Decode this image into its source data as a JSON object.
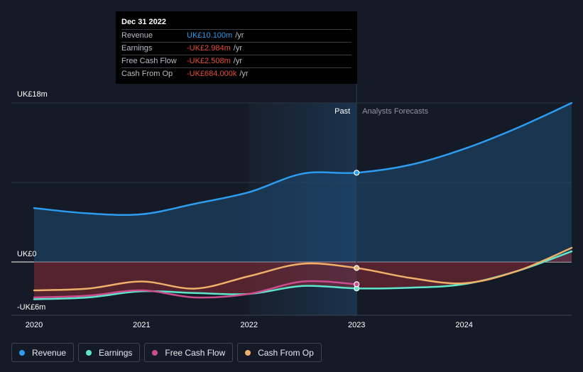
{
  "tooltip": {
    "date": "Dec 31 2022",
    "rows": [
      {
        "label": "Revenue",
        "value": "UK£10.100m",
        "unit": "/yr"
      },
      {
        "label": "Earnings",
        "value": "-UK£2.984m",
        "unit": "/yr"
      },
      {
        "label": "Free Cash Flow",
        "value": "-UK£2.508m",
        "unit": "/yr"
      },
      {
        "label": "Cash From Op",
        "value": "-UK£684.000k",
        "unit": "/yr"
      }
    ]
  },
  "legend": [
    {
      "label": "Revenue",
      "color": "#2d9cf0"
    },
    {
      "label": "Earnings",
      "color": "#5ee6cc"
    },
    {
      "label": "Free Cash Flow",
      "color": "#cc4c8f"
    },
    {
      "label": "Cash From Op",
      "color": "#f0b06a"
    }
  ],
  "chart_data": {
    "type": "line",
    "title": "",
    "ylabel": "",
    "xlabel": "",
    "y_tick_labels": [
      "UK£18m",
      "UK£0",
      "-UK£6m"
    ],
    "x_tick_labels": [
      "2020",
      "2021",
      "2022",
      "2023",
      "2024"
    ],
    "past_label": "Past",
    "forecast_label": "Analysts Forecasts",
    "xlim": [
      2020.0,
      2025.0
    ],
    "ylim": [
      -6.0,
      18.0
    ],
    "past_end": 2022.0,
    "hover_point": 2023.0,
    "series": [
      {
        "name": "Revenue",
        "color": "#2d9cf0",
        "x": [
          2020.0,
          2020.5,
          2021.0,
          2021.5,
          2022.0,
          2022.5,
          2023.0,
          2023.5,
          2024.0,
          2024.5,
          2025.0
        ],
        "y": [
          6.1,
          5.5,
          5.4,
          6.6,
          7.9,
          10.0,
          10.1,
          11.0,
          12.8,
          15.2,
          18.0
        ]
      },
      {
        "name": "Earnings",
        "color": "#5ee6cc",
        "x": [
          2020.0,
          2020.5,
          2021.0,
          2021.5,
          2022.0,
          2022.5,
          2023.0,
          2023.5,
          2024.0,
          2024.5,
          2025.0
        ],
        "y": [
          -4.2,
          -4.0,
          -3.3,
          -3.5,
          -3.6,
          -2.7,
          -2.98,
          -2.9,
          -2.5,
          -1.0,
          1.2
        ]
      },
      {
        "name": "Free Cash Flow",
        "color": "#cc4c8f",
        "x": [
          2020.0,
          2020.5,
          2021.0,
          2021.5,
          2022.0,
          2022.5,
          2023.0
        ],
        "y": [
          -4.0,
          -3.8,
          -3.2,
          -4.0,
          -3.6,
          -2.2,
          -2.51
        ]
      },
      {
        "name": "Cash From Op",
        "color": "#f0b06a",
        "x": [
          2020.0,
          2020.5,
          2021.0,
          2021.5,
          2022.0,
          2022.5,
          2023.0,
          2023.5,
          2024.0,
          2024.5,
          2025.0
        ],
        "y": [
          -3.2,
          -3.0,
          -2.2,
          -3.0,
          -1.6,
          -0.2,
          -0.68,
          -1.8,
          -2.4,
          -1.0,
          1.6
        ]
      }
    ]
  }
}
